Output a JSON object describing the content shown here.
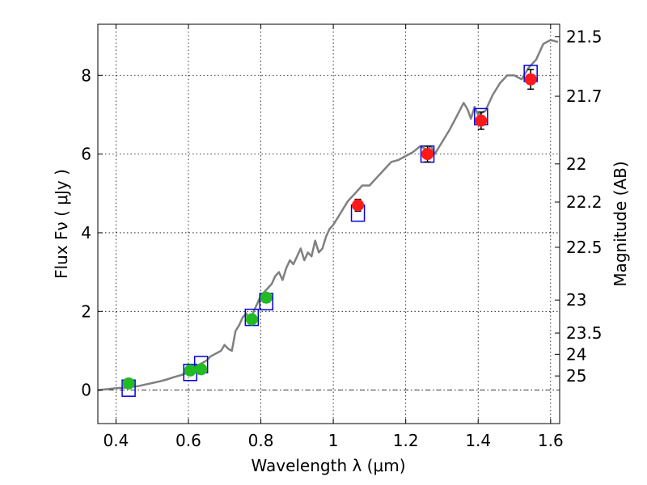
{
  "chart_data": {
    "type": "scatter",
    "xlabel": "Wavelength  λ (μm)",
    "ylabel": "Flux  Fν  ( μJy )",
    "ylabel_right": "Magnitude (AB)",
    "xlim": [
      0.35,
      1.625
    ],
    "ylim": [
      -0.85,
      9.3
    ],
    "grid": true,
    "x_ticks": [
      0.4,
      0.6,
      0.8,
      1.0,
      1.2,
      1.4,
      1.6
    ],
    "x_tick_labels": [
      "0.4",
      "0.6",
      "0.8",
      "1",
      "1.2",
      "1.4",
      "1.6"
    ],
    "y_ticks": [
      0,
      2,
      4,
      6,
      8
    ],
    "y_tick_labels": [
      "0",
      "2",
      "4",
      "6",
      "8"
    ],
    "right_ticks": [
      {
        "flux": 8.98,
        "label": "21.5"
      },
      {
        "flux": 7.47,
        "label": "21.7"
      },
      {
        "flux": 5.75,
        "label": "22"
      },
      {
        "flux": 4.78,
        "label": "22.2"
      },
      {
        "flux": 3.63,
        "label": "22.5"
      },
      {
        "flux": 2.29,
        "label": "23"
      },
      {
        "flux": 1.45,
        "label": "23.5"
      },
      {
        "flux": 0.91,
        "label": "24"
      },
      {
        "flux": 0.36,
        "label": "25"
      }
    ],
    "colors": {
      "model": "#808080",
      "green_points": "#22bb22",
      "red_points": "#ff1a1a",
      "model_boxes": "#0000dd",
      "errorbars": "#000000"
    },
    "model_spectrum": {
      "x": [
        0.35,
        0.38,
        0.4,
        0.42,
        0.44,
        0.46,
        0.48,
        0.5,
        0.52,
        0.54,
        0.56,
        0.58,
        0.6,
        0.61,
        0.62,
        0.63,
        0.64,
        0.65,
        0.66,
        0.67,
        0.68,
        0.69,
        0.7,
        0.71,
        0.72,
        0.73,
        0.74,
        0.75,
        0.76,
        0.77,
        0.78,
        0.79,
        0.8,
        0.81,
        0.82,
        0.83,
        0.84,
        0.85,
        0.86,
        0.87,
        0.88,
        0.89,
        0.9,
        0.91,
        0.92,
        0.93,
        0.94,
        0.95,
        0.96,
        0.97,
        0.98,
        0.99,
        1.0,
        1.02,
        1.04,
        1.06,
        1.08,
        1.1,
        1.12,
        1.14,
        1.16,
        1.18,
        1.2,
        1.22,
        1.24,
        1.26,
        1.27,
        1.28,
        1.3,
        1.32,
        1.34,
        1.36,
        1.37,
        1.38,
        1.39,
        1.4,
        1.42,
        1.44,
        1.46,
        1.48,
        1.5,
        1.52,
        1.54,
        1.56,
        1.58,
        1.6,
        1.62
      ],
      "y": [
        0.0,
        0.03,
        0.05,
        0.06,
        0.08,
        0.1,
        0.14,
        0.18,
        0.22,
        0.27,
        0.33,
        0.38,
        0.45,
        0.52,
        0.6,
        0.65,
        0.7,
        0.75,
        0.85,
        0.9,
        0.95,
        1.0,
        1.15,
        1.05,
        1.0,
        1.5,
        1.65,
        1.85,
        1.95,
        1.7,
        2.0,
        2.2,
        2.4,
        2.5,
        2.6,
        2.7,
        2.9,
        3.0,
        2.8,
        3.1,
        3.3,
        3.2,
        3.4,
        3.6,
        3.3,
        3.5,
        3.4,
        3.8,
        3.5,
        3.6,
        3.9,
        4.1,
        4.2,
        4.5,
        4.8,
        5.0,
        5.2,
        5.2,
        5.4,
        5.6,
        5.8,
        5.85,
        5.95,
        6.05,
        6.2,
        6.1,
        6.2,
        6.0,
        6.3,
        6.6,
        6.95,
        7.3,
        7.15,
        6.9,
        7.2,
        7.0,
        7.1,
        7.5,
        7.8,
        8.0,
        8.0,
        7.9,
        8.2,
        8.4,
        8.8,
        8.9,
        8.85
      ]
    },
    "series": [
      {
        "marker": "green-circle",
        "points": [
          {
            "x": 0.435,
            "y": 0.17,
            "err": 0.08,
            "model": 0.05
          },
          {
            "x": 0.605,
            "y": 0.5,
            "err": 0.07,
            "model": 0.45
          },
          {
            "x": 0.635,
            "y": 0.53,
            "err": 0.08,
            "model": 0.65
          },
          {
            "x": 0.775,
            "y": 1.8,
            "err": 0.1,
            "model": 1.85
          },
          {
            "x": 0.815,
            "y": 2.35,
            "err": 0.12,
            "model": 2.25
          }
        ]
      },
      {
        "marker": "red-circle",
        "points": [
          {
            "x": 1.068,
            "y": 4.7,
            "err": 0.15,
            "model": 4.5
          },
          {
            "x": 1.26,
            "y": 6.0,
            "err": 0.2,
            "model": 6.0
          },
          {
            "x": 1.408,
            "y": 6.85,
            "err": 0.22,
            "model": 6.95
          },
          {
            "x": 1.545,
            "y": 7.9,
            "err": 0.25,
            "model": 8.05
          }
        ]
      }
    ]
  }
}
